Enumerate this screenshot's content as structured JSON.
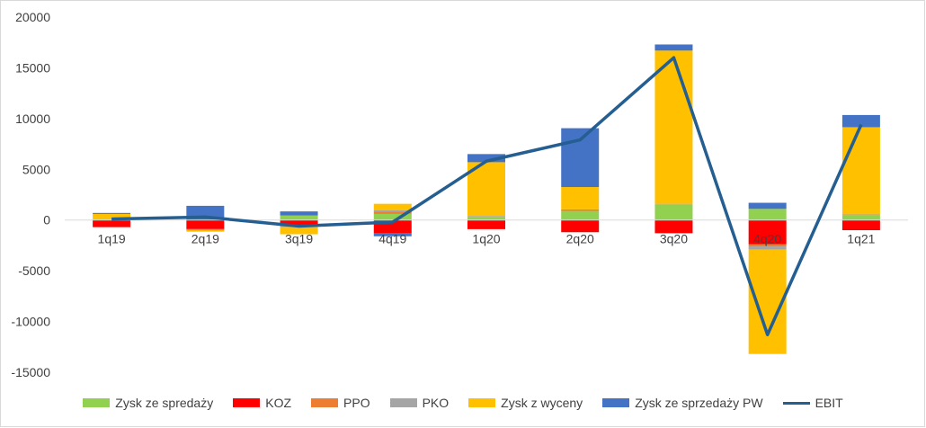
{
  "chart_data": {
    "type": "bar",
    "stacked": true,
    "categories": [
      "1q19",
      "2q19",
      "3q19",
      "4q19",
      "1q20",
      "2q20",
      "3q20",
      "4q20",
      "1q21"
    ],
    "ylim": [
      -15000,
      20000
    ],
    "yticks": [
      20000,
      15000,
      10000,
      5000,
      0,
      -5000,
      -10000,
      -15000
    ],
    "grid": false,
    "legend_position": "bottom",
    "series": [
      {
        "name": "Zysk ze spredaży",
        "color": "#92d050",
        "values": [
          100,
          0,
          450,
          600,
          300,
          900,
          1500,
          1100,
          500
        ]
      },
      {
        "name": "KOZ",
        "color": "#ff0000",
        "values": [
          -700,
          -900,
          -500,
          -1300,
          -900,
          -1200,
          -1300,
          -2400,
          -1000
        ]
      },
      {
        "name": "PPO",
        "color": "#ed7d31",
        "values": [
          0,
          0,
          0,
          250,
          0,
          150,
          50,
          -200,
          0
        ]
      },
      {
        "name": "PKO",
        "color": "#a5a5a5",
        "values": [
          0,
          -100,
          -200,
          100,
          100,
          0,
          50,
          -300,
          50
        ]
      },
      {
        "name": "Zysk z wyceny",
        "color": "#ffc000",
        "values": [
          500,
          -150,
          -700,
          650,
          5300,
          2200,
          15100,
          -10300,
          8600
        ]
      },
      {
        "name": "Zysk ze sprzedaży PW",
        "color": "#4472c4",
        "values": [
          100,
          1400,
          400,
          -300,
          800,
          5800,
          600,
          600,
          1200
        ]
      }
    ],
    "line": {
      "name": "EBIT",
      "color": "#255e91",
      "values": [
        100,
        300,
        -600,
        -200,
        5800,
        7900,
        16000,
        -11300,
        9400
      ]
    }
  }
}
